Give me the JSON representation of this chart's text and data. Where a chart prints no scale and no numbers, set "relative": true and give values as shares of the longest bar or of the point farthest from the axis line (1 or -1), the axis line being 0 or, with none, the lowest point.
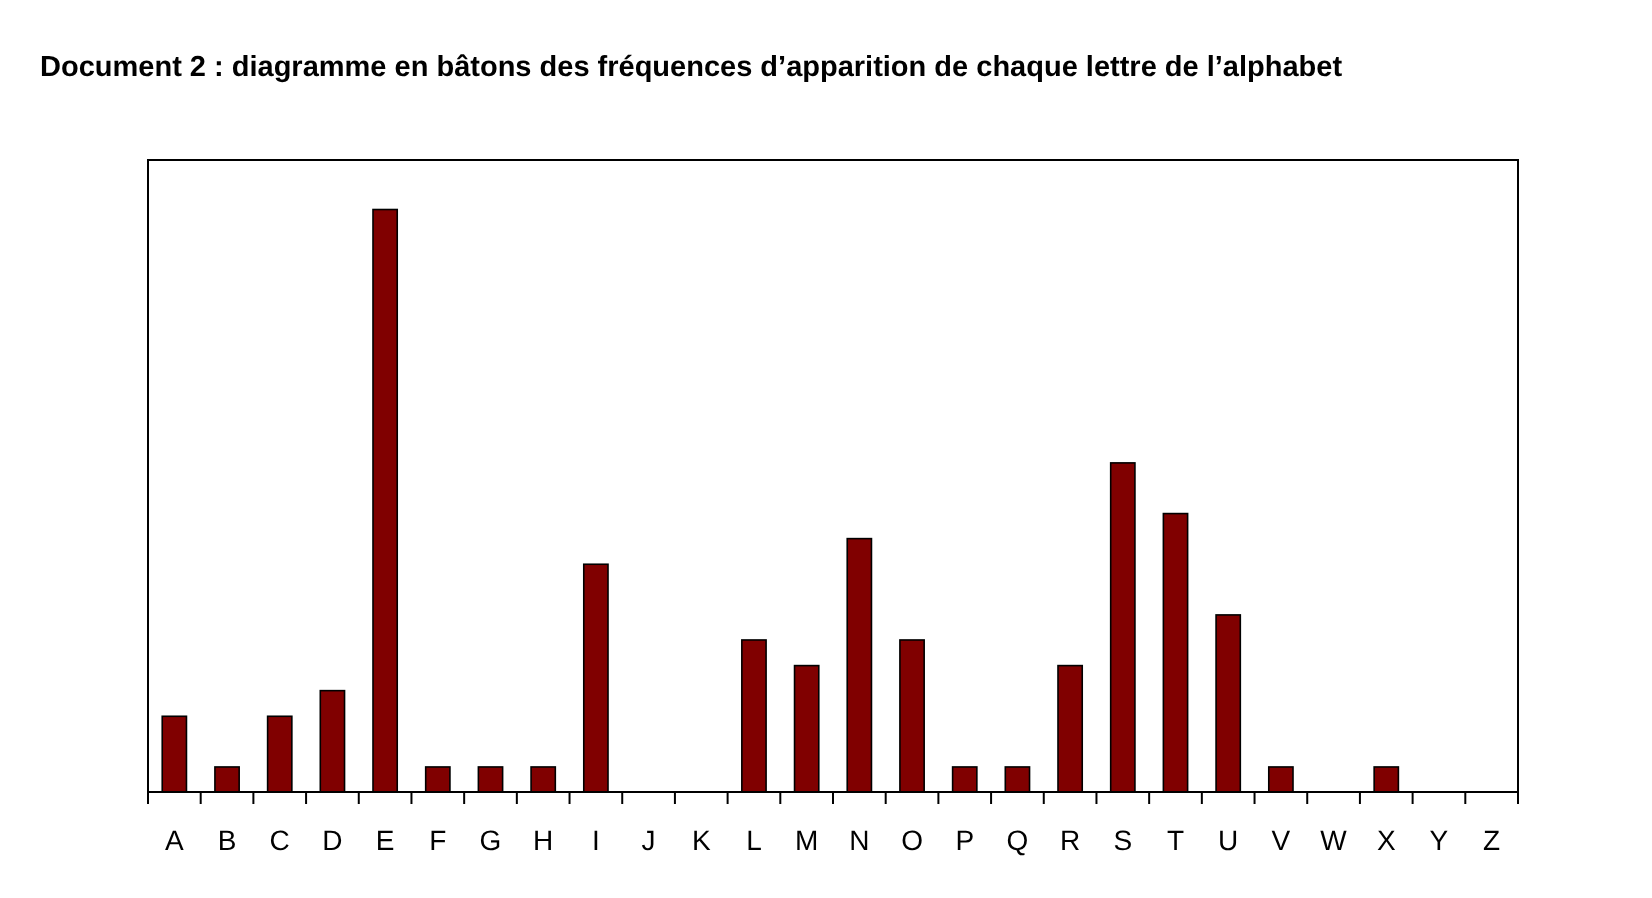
{
  "chart_data": {
    "type": "bar",
    "title": "Document 2 : diagramme en bâtons des fréquences d’apparition de chaque lettre de l’alphabet",
    "categories": [
      "A",
      "B",
      "C",
      "D",
      "E",
      "F",
      "G",
      "H",
      "I",
      "J",
      "K",
      "L",
      "M",
      "N",
      "O",
      "P",
      "Q",
      "R",
      "S",
      "T",
      "U",
      "V",
      "W",
      "X",
      "Y",
      "Z"
    ],
    "values": [
      0.13,
      0.043,
      0.13,
      0.174,
      1,
      0.043,
      0.043,
      0.043,
      0.391,
      0,
      0,
      0.261,
      0.217,
      0.435,
      0.261,
      0.043,
      0.043,
      0.217,
      0.565,
      0.478,
      0.304,
      0.043,
      0,
      0.043,
      0,
      0
    ],
    "color": "#800000",
    "relative": true
  }
}
